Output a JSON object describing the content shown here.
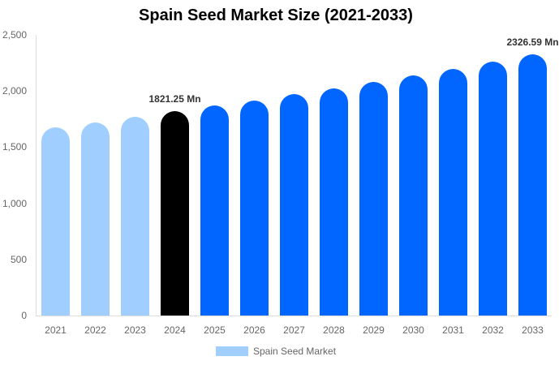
{
  "chart_data": {
    "type": "bar",
    "title": "Spain Seed Market Size (2021-2033)",
    "xlabel": "",
    "ylabel": "",
    "ylim": [
      0,
      2500
    ],
    "yticks": [
      "0",
      "500",
      "1,000",
      "1,500",
      "2,000",
      "2,500"
    ],
    "grid": false,
    "legend_position": "bottom",
    "categories": [
      "2021",
      "2022",
      "2023",
      "2024",
      "2025",
      "2026",
      "2027",
      "2028",
      "2029",
      "2030",
      "2031",
      "2032",
      "2033"
    ],
    "series": [
      {
        "name": "Spain Seed Market",
        "values": [
          1676,
          1720,
          1770,
          1821.25,
          1871,
          1915,
          1973,
          2023,
          2081,
          2139,
          2197,
          2262,
          2326.59
        ],
        "colors": [
          "#a0cfff",
          "#a0cfff",
          "#a0cfff",
          "#000000",
          "#0066ff",
          "#0066ff",
          "#0066ff",
          "#0066ff",
          "#0066ff",
          "#0066ff",
          "#0066ff",
          "#0066ff",
          "#0066ff"
        ]
      }
    ],
    "annotations": [
      {
        "category": "2024",
        "text": "1821.25 Mn"
      },
      {
        "category": "2033",
        "text": "2326.59 Mn"
      }
    ]
  },
  "legend": {
    "label": "Spain Seed Market",
    "color": "#a0cfff"
  }
}
